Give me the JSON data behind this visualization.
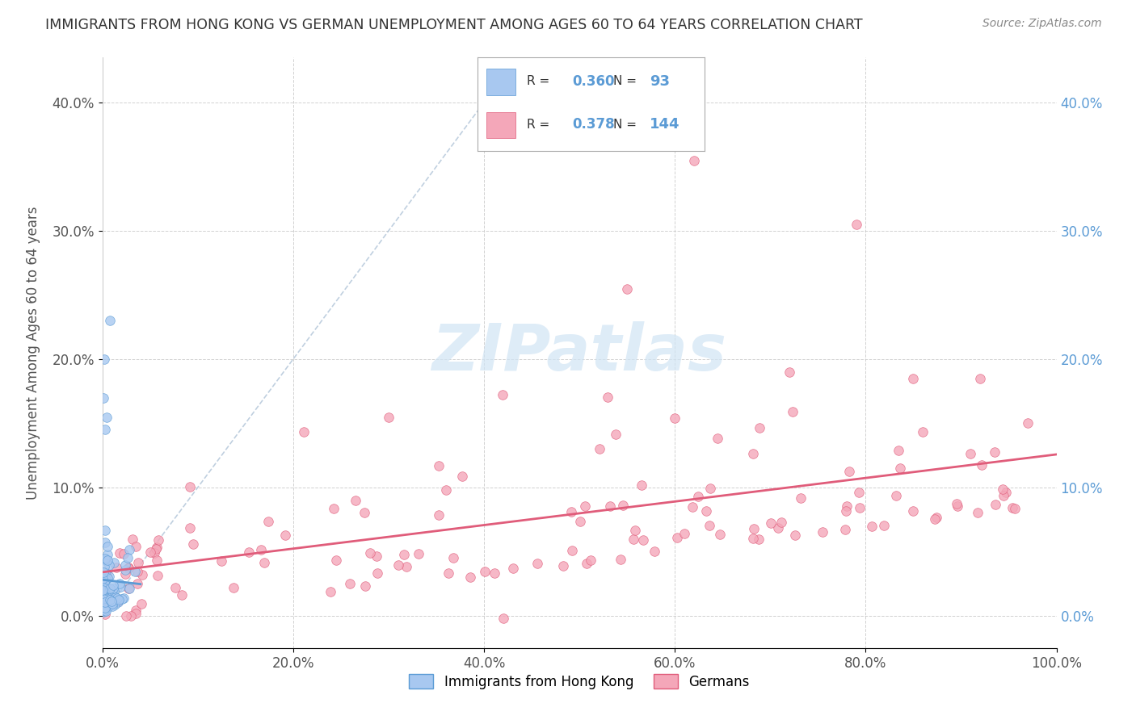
{
  "title": "IMMIGRANTS FROM HONG KONG VS GERMAN UNEMPLOYMENT AMONG AGES 60 TO 64 YEARS CORRELATION CHART",
  "source": "Source: ZipAtlas.com",
  "ylabel": "Unemployment Among Ages 60 to 64 years",
  "xlabel_ticks": [
    "0.0%",
    "20.0%",
    "40.0%",
    "60.0%",
    "80.0%",
    "100.0%"
  ],
  "ylabel_ticks": [
    "0.0%",
    "10.0%",
    "20.0%",
    "30.0%",
    "40.0%"
  ],
  "xlim": [
    0,
    1.0
  ],
  "ylim": [
    -0.025,
    0.435
  ],
  "hk_R": "0.360",
  "hk_N": "93",
  "ger_R": "0.378",
  "ger_N": "144",
  "hk_color": "#a8c8f0",
  "hk_color_dark": "#5b9bd5",
  "ger_color": "#f4a7b9",
  "ger_color_dark": "#e05c7a",
  "watermark_color": "#d0e4f4",
  "background_color": "#ffffff",
  "grid_color": "#cccccc",
  "legend_label_hk": "Immigrants from Hong Kong",
  "legend_label_ger": "Germans",
  "seed": 42
}
